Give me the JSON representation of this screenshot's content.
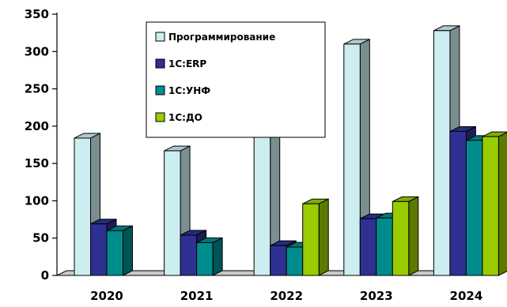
{
  "chart_data": {
    "type": "bar",
    "style": "3d-clustered",
    "categories": [
      "2020",
      "2021",
      "2022",
      "2023",
      "2024"
    ],
    "series": [
      {
        "name": "Программирование",
        "color": "#cdeef0",
        "values": [
          184,
          167,
          308,
          310,
          328
        ]
      },
      {
        "name": "1С:ERP",
        "color": "#2e3192",
        "values": [
          69,
          54,
          40,
          76,
          193
        ]
      },
      {
        "name": "1С:УНФ",
        "color": "#008c8c",
        "values": [
          60,
          44,
          38,
          77,
          181
        ]
      },
      {
        "name": "1С:ДО",
        "color": "#99cc00",
        "values": [
          0,
          0,
          96,
          99,
          186
        ]
      }
    ],
    "yticks": [
      "0",
      "50",
      "100",
      "150",
      "200",
      "250",
      "300",
      "350"
    ],
    "ylim": [
      0,
      350
    ],
    "grid": false,
    "legend_position": "top-center"
  }
}
